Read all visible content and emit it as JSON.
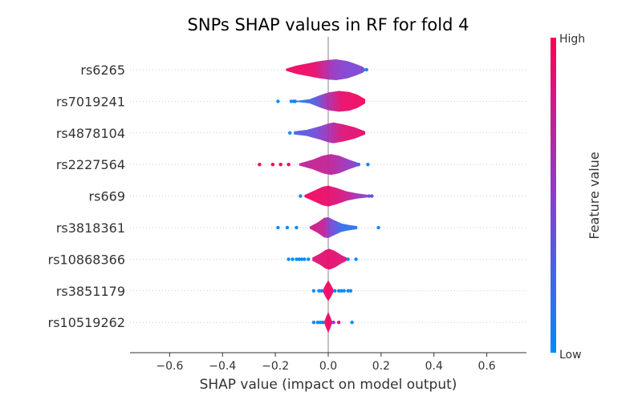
{
  "chart_data": {
    "type": "violin",
    "title": "SNPs SHAP values in RF for fold 4",
    "xlabel": "SHAP value (impact on model output)",
    "xlim": [
      -0.75,
      0.75
    ],
    "xticks": [
      -0.6,
      -0.4,
      -0.2,
      0.0,
      0.2,
      0.4,
      0.6
    ],
    "xtick_labels": [
      "−0.6",
      "−0.4",
      "−0.2",
      "0.0",
      "0.2",
      "0.4",
      "0.6"
    ],
    "colorbar": {
      "label": "Feature value",
      "high_label": "High",
      "low_label": "Low",
      "high_color": "#ff0052",
      "mid_color": "#8a3ed0",
      "low_color": "#008bfb"
    },
    "features": [
      {
        "name": "rs6265",
        "range": [
          -0.16,
          0.14
        ],
        "peak": 0.03,
        "shape": [
          [
            -0.16,
            0.1
          ],
          [
            -0.12,
            0.4
          ],
          [
            -0.08,
            0.6
          ],
          [
            -0.04,
            0.8
          ],
          [
            0.0,
            0.95
          ],
          [
            0.03,
            1.0
          ],
          [
            0.07,
            0.85
          ],
          [
            0.1,
            0.6
          ],
          [
            0.13,
            0.3
          ],
          [
            0.14,
            0.1
          ]
        ],
        "colors": [
          [
            -0.16,
            0.95
          ],
          [
            -0.05,
            0.9
          ],
          [
            0.02,
            0.55
          ],
          [
            0.08,
            0.45
          ],
          [
            0.14,
            0.45
          ]
        ],
        "outliers": [
          {
            "x": 0.145,
            "v": 0.0
          }
        ]
      },
      {
        "name": "rs7019241",
        "range": [
          -0.12,
          0.14
        ],
        "peak": 0.04,
        "shape": [
          [
            -0.12,
            0.05
          ],
          [
            -0.07,
            0.2
          ],
          [
            -0.03,
            0.6
          ],
          [
            0.0,
            0.85
          ],
          [
            0.04,
            1.0
          ],
          [
            0.08,
            0.9
          ],
          [
            0.11,
            0.65
          ],
          [
            0.14,
            0.2
          ]
        ],
        "colors": [
          [
            -0.12,
            0.1
          ],
          [
            -0.05,
            0.3
          ],
          [
            0.0,
            0.65
          ],
          [
            0.05,
            0.9
          ],
          [
            0.14,
            0.95
          ]
        ],
        "outliers": [
          {
            "x": -0.19,
            "v": 0.0
          },
          {
            "x": -0.14,
            "v": 0.0
          },
          {
            "x": -0.13,
            "v": 0.0
          },
          {
            "x": -0.125,
            "v": 0.1
          }
        ]
      },
      {
        "name": "rs4878104",
        "range": [
          -0.13,
          0.14
        ],
        "peak": 0.02,
        "shape": [
          [
            -0.13,
            0.15
          ],
          [
            -0.08,
            0.3
          ],
          [
            -0.03,
            0.65
          ],
          [
            0.0,
            0.9
          ],
          [
            0.02,
            1.0
          ],
          [
            0.06,
            0.8
          ],
          [
            0.1,
            0.55
          ],
          [
            0.14,
            0.15
          ]
        ],
        "colors": [
          [
            -0.13,
            0.25
          ],
          [
            -0.05,
            0.4
          ],
          [
            0.0,
            0.6
          ],
          [
            0.05,
            0.85
          ],
          [
            0.14,
            0.9
          ]
        ],
        "outliers": [
          {
            "x": -0.145,
            "v": 0.0
          }
        ]
      },
      {
        "name": "rs2227564",
        "range": [
          -0.11,
          0.12
        ],
        "peak": 0.01,
        "shape": [
          [
            -0.11,
            0.1
          ],
          [
            -0.06,
            0.45
          ],
          [
            -0.02,
            0.85
          ],
          [
            0.01,
            1.0
          ],
          [
            0.04,
            0.85
          ],
          [
            0.08,
            0.45
          ],
          [
            0.12,
            0.1
          ]
        ],
        "colors": [
          [
            -0.11,
            0.7
          ],
          [
            -0.03,
            0.75
          ],
          [
            0.02,
            0.7
          ],
          [
            0.08,
            0.55
          ],
          [
            0.12,
            0.4
          ]
        ],
        "outliers": [
          {
            "x": -0.26,
            "v": 1.0
          },
          {
            "x": -0.21,
            "v": 1.0
          },
          {
            "x": -0.18,
            "v": 1.0
          },
          {
            "x": -0.15,
            "v": 0.9
          },
          {
            "x": 0.115,
            "v": 0.2
          },
          {
            "x": 0.15,
            "v": 0.1
          }
        ]
      },
      {
        "name": "rs669",
        "range": [
          -0.09,
          0.15
        ],
        "peak": 0.0,
        "shape": [
          [
            -0.09,
            0.1
          ],
          [
            -0.05,
            0.55
          ],
          [
            -0.02,
            0.9
          ],
          [
            0.0,
            1.0
          ],
          [
            0.03,
            0.8
          ],
          [
            0.07,
            0.45
          ],
          [
            0.11,
            0.25
          ],
          [
            0.15,
            0.12
          ]
        ],
        "colors": [
          [
            -0.09,
            0.95
          ],
          [
            0.0,
            0.9
          ],
          [
            0.06,
            0.8
          ],
          [
            0.11,
            0.6
          ],
          [
            0.15,
            0.45
          ]
        ],
        "outliers": [
          {
            "x": -0.105,
            "v": 0.0
          },
          {
            "x": 0.155,
            "v": 0.35
          },
          {
            "x": 0.165,
            "v": 0.4
          }
        ]
      },
      {
        "name": "rs3818361",
        "range": [
          -0.07,
          0.11
        ],
        "peak": -0.01,
        "shape": [
          [
            -0.07,
            0.1
          ],
          [
            -0.04,
            0.5
          ],
          [
            -0.015,
            0.95
          ],
          [
            0.0,
            1.0
          ],
          [
            0.02,
            0.75
          ],
          [
            0.05,
            0.4
          ],
          [
            0.08,
            0.25
          ],
          [
            0.11,
            0.15
          ]
        ],
        "colors": [
          [
            -0.07,
            0.8
          ],
          [
            -0.02,
            0.75
          ],
          [
            0.01,
            0.45
          ],
          [
            0.05,
            0.2
          ],
          [
            0.11,
            0.15
          ]
        ],
        "outliers": [
          {
            "x": -0.19,
            "v": 0.0
          },
          {
            "x": -0.155,
            "v": 0.0
          },
          {
            "x": -0.12,
            "v": 0.0
          },
          {
            "x": 0.19,
            "v": 0.0
          }
        ]
      },
      {
        "name": "rs10868366",
        "range": [
          -0.06,
          0.07
        ],
        "peak": 0.0,
        "shape": [
          [
            -0.06,
            0.15
          ],
          [
            -0.03,
            0.55
          ],
          [
            -0.01,
            0.9
          ],
          [
            0.005,
            1.0
          ],
          [
            0.025,
            0.8
          ],
          [
            0.05,
            0.4
          ],
          [
            0.07,
            0.15
          ]
        ],
        "colors": [
          [
            -0.06,
            0.85
          ],
          [
            0.0,
            0.9
          ],
          [
            0.07,
            0.85
          ]
        ],
        "outliers": [
          {
            "x": -0.15,
            "v": 0.0
          },
          {
            "x": -0.135,
            "v": 0.0
          },
          {
            "x": -0.12,
            "v": 0.0
          },
          {
            "x": -0.11,
            "v": 0.0
          },
          {
            "x": -0.1,
            "v": 0.0
          },
          {
            "x": -0.09,
            "v": 0.0
          },
          {
            "x": -0.075,
            "v": 0.0
          },
          {
            "x": 0.075,
            "v": 0.0
          },
          {
            "x": 0.105,
            "v": 0.0
          }
        ]
      },
      {
        "name": "rs3851179",
        "range": [
          -0.02,
          0.02
        ],
        "peak": 0.0,
        "shape": [
          [
            -0.02,
            0.1
          ],
          [
            -0.01,
            0.6
          ],
          [
            0.0,
            1.0
          ],
          [
            0.01,
            0.6
          ],
          [
            0.02,
            0.1
          ]
        ],
        "colors": [
          [
            -0.02,
            0.9
          ],
          [
            0.0,
            0.95
          ],
          [
            0.02,
            0.9
          ]
        ],
        "outliers": [
          {
            "x": -0.055,
            "v": 0.0
          },
          {
            "x": -0.035,
            "v": 0.0
          },
          {
            "x": -0.025,
            "v": 0.1
          },
          {
            "x": 0.025,
            "v": 0.0
          },
          {
            "x": 0.04,
            "v": 0.0
          },
          {
            "x": 0.05,
            "v": 0.0
          },
          {
            "x": 0.06,
            "v": 0.0
          },
          {
            "x": 0.075,
            "v": 0.0
          },
          {
            "x": 0.085,
            "v": 0.0
          }
        ]
      },
      {
        "name": "rs10519262",
        "range": [
          -0.015,
          0.015
        ],
        "peak": 0.0,
        "shape": [
          [
            -0.015,
            0.1
          ],
          [
            -0.007,
            0.6
          ],
          [
            0.0,
            1.0
          ],
          [
            0.007,
            0.6
          ],
          [
            0.015,
            0.1
          ]
        ],
        "colors": [
          [
            -0.015,
            0.9
          ],
          [
            0.0,
            0.95
          ],
          [
            0.015,
            0.9
          ]
        ],
        "outliers": [
          {
            "x": -0.055,
            "v": 0.0
          },
          {
            "x": -0.04,
            "v": 0.0
          },
          {
            "x": -0.03,
            "v": 0.0
          },
          {
            "x": -0.02,
            "v": 0.1
          },
          {
            "x": 0.02,
            "v": 0.5
          },
          {
            "x": 0.04,
            "v": 0.8
          },
          {
            "x": 0.09,
            "v": 0.0
          }
        ]
      }
    ]
  }
}
